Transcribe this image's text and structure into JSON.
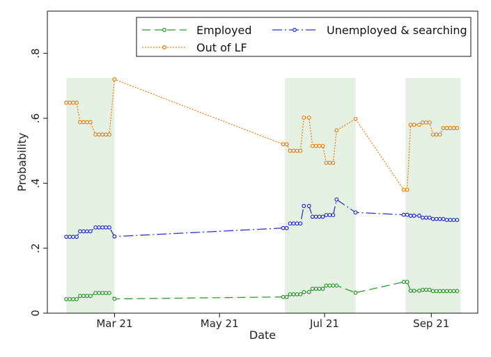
{
  "chart_data": {
    "type": "line",
    "title": "",
    "xlabel": "Date",
    "ylabel": "Probability",
    "ylim": [
      0,
      0.93
    ],
    "xlim": [
      "2021-01-21",
      "2021-09-28"
    ],
    "yticks": [
      0,
      0.2,
      0.4,
      0.6,
      0.8
    ],
    "ytick_labels": [
      "0",
      ".2",
      ".4",
      ".6",
      ".8"
    ],
    "xticks": [
      "2021-03-01",
      "2021-05-01",
      "2021-07-01",
      "2021-09-01"
    ],
    "xtick_labels": [
      "Mar 21",
      "May 21",
      "Jul 21",
      "Sep 21"
    ],
    "grid": false,
    "legend_position": "top-right",
    "shaded_periods": [
      {
        "start": "2021-02-01",
        "end": "2021-03-01"
      },
      {
        "start": "2021-06-08",
        "end": "2021-07-19"
      },
      {
        "start": "2021-08-17",
        "end": "2021-09-18"
      }
    ],
    "series": [
      {
        "name": "Employed",
        "color": "#2e9a2e",
        "dash": "long-dash",
        "points": [
          [
            "2021-02-01",
            0.043
          ],
          [
            "2021-02-03",
            0.043
          ],
          [
            "2021-02-05",
            0.043
          ],
          [
            "2021-02-07",
            0.043
          ],
          [
            "2021-02-09",
            0.053
          ],
          [
            "2021-02-11",
            0.053
          ],
          [
            "2021-02-13",
            0.053
          ],
          [
            "2021-02-15",
            0.053
          ],
          [
            "2021-02-18",
            0.062
          ],
          [
            "2021-02-20",
            0.062
          ],
          [
            "2021-02-22",
            0.062
          ],
          [
            "2021-02-24",
            0.062
          ],
          [
            "2021-02-26",
            0.062
          ],
          [
            "2021-03-01",
            0.044
          ],
          [
            "2021-06-07",
            0.05
          ],
          [
            "2021-06-09",
            0.05
          ],
          [
            "2021-06-11",
            0.058
          ],
          [
            "2021-06-13",
            0.058
          ],
          [
            "2021-06-15",
            0.058
          ],
          [
            "2021-06-17",
            0.058
          ],
          [
            "2021-06-19",
            0.065
          ],
          [
            "2021-06-22",
            0.065
          ],
          [
            "2021-06-24",
            0.075
          ],
          [
            "2021-06-26",
            0.075
          ],
          [
            "2021-06-28",
            0.075
          ],
          [
            "2021-06-30",
            0.075
          ],
          [
            "2021-07-02",
            0.085
          ],
          [
            "2021-07-04",
            0.085
          ],
          [
            "2021-07-06",
            0.085
          ],
          [
            "2021-07-08",
            0.085
          ],
          [
            "2021-07-19",
            0.063
          ],
          [
            "2021-08-16",
            0.096
          ],
          [
            "2021-08-18",
            0.096
          ],
          [
            "2021-08-20",
            0.069
          ],
          [
            "2021-08-22",
            0.069
          ],
          [
            "2021-08-25",
            0.069
          ],
          [
            "2021-08-27",
            0.072
          ],
          [
            "2021-08-29",
            0.072
          ],
          [
            "2021-08-31",
            0.072
          ],
          [
            "2021-09-02",
            0.068
          ],
          [
            "2021-09-04",
            0.068
          ],
          [
            "2021-09-06",
            0.068
          ],
          [
            "2021-09-08",
            0.068
          ],
          [
            "2021-09-10",
            0.068
          ],
          [
            "2021-09-12",
            0.068
          ],
          [
            "2021-09-14",
            0.068
          ],
          [
            "2021-09-16",
            0.068
          ]
        ]
      },
      {
        "name": "Unemployed & searching",
        "color": "#2b35c9",
        "dash": "dash-dot",
        "points": [
          [
            "2021-02-01",
            0.235
          ],
          [
            "2021-02-03",
            0.235
          ],
          [
            "2021-02-05",
            0.235
          ],
          [
            "2021-02-07",
            0.235
          ],
          [
            "2021-02-09",
            0.252
          ],
          [
            "2021-02-11",
            0.252
          ],
          [
            "2021-02-13",
            0.252
          ],
          [
            "2021-02-15",
            0.252
          ],
          [
            "2021-02-18",
            0.264
          ],
          [
            "2021-02-20",
            0.264
          ],
          [
            "2021-02-22",
            0.264
          ],
          [
            "2021-02-24",
            0.264
          ],
          [
            "2021-02-26",
            0.264
          ],
          [
            "2021-03-01",
            0.236
          ],
          [
            "2021-06-07",
            0.262
          ],
          [
            "2021-06-09",
            0.262
          ],
          [
            "2021-06-11",
            0.276
          ],
          [
            "2021-06-13",
            0.276
          ],
          [
            "2021-06-15",
            0.276
          ],
          [
            "2021-06-17",
            0.276
          ],
          [
            "2021-06-19",
            0.33
          ],
          [
            "2021-06-22",
            0.33
          ],
          [
            "2021-06-24",
            0.297
          ],
          [
            "2021-06-26",
            0.297
          ],
          [
            "2021-06-28",
            0.297
          ],
          [
            "2021-06-30",
            0.297
          ],
          [
            "2021-07-02",
            0.302
          ],
          [
            "2021-07-04",
            0.302
          ],
          [
            "2021-07-06",
            0.302
          ],
          [
            "2021-07-08",
            0.35
          ],
          [
            "2021-07-19",
            0.31
          ],
          [
            "2021-08-16",
            0.303
          ],
          [
            "2021-08-18",
            0.303
          ],
          [
            "2021-08-20",
            0.3
          ],
          [
            "2021-08-22",
            0.3
          ],
          [
            "2021-08-25",
            0.3
          ],
          [
            "2021-08-27",
            0.294
          ],
          [
            "2021-08-29",
            0.294
          ],
          [
            "2021-08-31",
            0.294
          ],
          [
            "2021-09-02",
            0.29
          ],
          [
            "2021-09-04",
            0.29
          ],
          [
            "2021-09-06",
            0.29
          ],
          [
            "2021-09-08",
            0.29
          ],
          [
            "2021-09-10",
            0.287
          ],
          [
            "2021-09-12",
            0.287
          ],
          [
            "2021-09-14",
            0.287
          ],
          [
            "2021-09-16",
            0.287
          ]
        ]
      },
      {
        "name": "Out of LF",
        "color": "#f07f12",
        "dash": "dot",
        "points": [
          [
            "2021-02-01",
            0.648
          ],
          [
            "2021-02-03",
            0.648
          ],
          [
            "2021-02-05",
            0.648
          ],
          [
            "2021-02-07",
            0.648
          ],
          [
            "2021-02-09",
            0.588
          ],
          [
            "2021-02-11",
            0.588
          ],
          [
            "2021-02-13",
            0.588
          ],
          [
            "2021-02-15",
            0.588
          ],
          [
            "2021-02-18",
            0.55
          ],
          [
            "2021-02-20",
            0.55
          ],
          [
            "2021-02-22",
            0.55
          ],
          [
            "2021-02-24",
            0.55
          ],
          [
            "2021-02-26",
            0.55
          ],
          [
            "2021-03-01",
            0.72
          ],
          [
            "2021-06-07",
            0.52
          ],
          [
            "2021-06-09",
            0.52
          ],
          [
            "2021-06-11",
            0.5
          ],
          [
            "2021-06-13",
            0.5
          ],
          [
            "2021-06-15",
            0.5
          ],
          [
            "2021-06-17",
            0.5
          ],
          [
            "2021-06-19",
            0.602
          ],
          [
            "2021-06-22",
            0.602
          ],
          [
            "2021-06-24",
            0.515
          ],
          [
            "2021-06-26",
            0.515
          ],
          [
            "2021-06-28",
            0.515
          ],
          [
            "2021-06-30",
            0.515
          ],
          [
            "2021-07-02",
            0.463
          ],
          [
            "2021-07-04",
            0.463
          ],
          [
            "2021-07-06",
            0.463
          ],
          [
            "2021-07-08",
            0.563
          ],
          [
            "2021-07-19",
            0.598
          ],
          [
            "2021-08-16",
            0.38
          ],
          [
            "2021-08-18",
            0.38
          ],
          [
            "2021-08-20",
            0.58
          ],
          [
            "2021-08-22",
            0.58
          ],
          [
            "2021-08-25",
            0.58
          ],
          [
            "2021-08-27",
            0.587
          ],
          [
            "2021-08-29",
            0.587
          ],
          [
            "2021-08-31",
            0.587
          ],
          [
            "2021-09-02",
            0.55
          ],
          [
            "2021-09-04",
            0.55
          ],
          [
            "2021-09-06",
            0.55
          ],
          [
            "2021-09-08",
            0.57
          ],
          [
            "2021-09-10",
            0.57
          ],
          [
            "2021-09-12",
            0.57
          ],
          [
            "2021-09-14",
            0.57
          ],
          [
            "2021-09-16",
            0.57
          ]
        ]
      }
    ]
  }
}
